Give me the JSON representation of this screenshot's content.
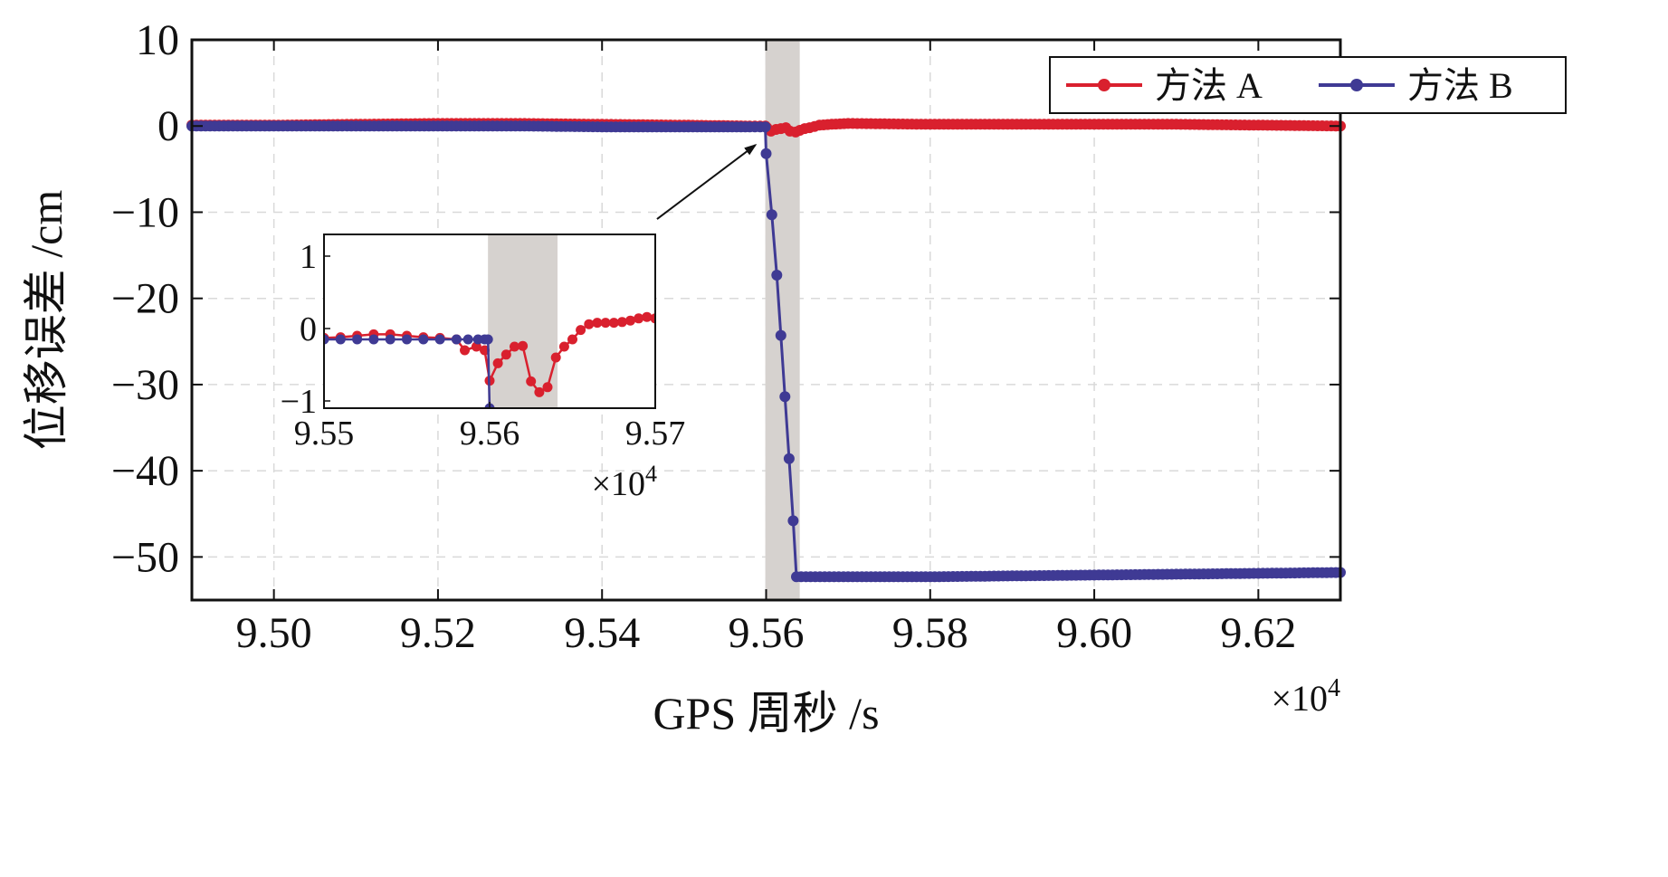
{
  "chart_data": [
    {
      "type": "line",
      "role": "main",
      "title": "",
      "xlabel": "GPS 周秒 /s",
      "ylabel": "位移误差 /cm",
      "x_multiplier_label": "×10",
      "x_multiplier_exp": "4",
      "xlim": [
        9.49,
        9.63
      ],
      "ylim": [
        -55,
        10
      ],
      "x_ticks": [
        9.5,
        9.52,
        9.54,
        9.56,
        9.58,
        9.6,
        9.62
      ],
      "x_tick_labels": [
        "9.50",
        "9.52",
        "9.54",
        "9.56",
        "9.58",
        "9.60",
        "9.62"
      ],
      "y_ticks": [
        10,
        0,
        -10,
        -20,
        -30,
        -40,
        -50
      ],
      "y_tick_labels": [
        "10",
        "0",
        "−10",
        "−20",
        "−30",
        "−40",
        "−50"
      ],
      "grid": true,
      "legend_position": "top-right",
      "shaded_region": [
        9.5599,
        9.5641
      ],
      "annotation_arrow": {
        "from": [
          9.5467,
          -10.8
        ],
        "to": [
          9.5587,
          -2.2
        ]
      },
      "series": [
        {
          "name": "方法 A",
          "color": "#d9202e",
          "x": [
            9.49,
            9.5,
            9.51,
            9.52,
            9.53,
            9.54,
            9.55,
            9.558,
            9.5599,
            9.5601,
            9.5606,
            9.5612,
            9.5618,
            9.5624,
            9.5629,
            9.5636,
            9.5641,
            9.5647,
            9.5653,
            9.5665,
            9.568,
            9.57,
            9.58,
            9.59,
            9.6,
            9.61,
            9.62,
            9.63
          ],
          "y": [
            0.1,
            0.1,
            0.2,
            0.3,
            0.3,
            0.2,
            0.1,
            0.0,
            0.0,
            -0.2,
            -0.6,
            -0.4,
            -0.3,
            -0.2,
            -0.6,
            -0.7,
            -0.5,
            -0.3,
            -0.2,
            0.1,
            0.2,
            0.3,
            0.2,
            0.2,
            0.2,
            0.2,
            0.1,
            0.0
          ]
        },
        {
          "name": "方法 B",
          "color": "#3f3a94",
          "x": [
            9.49,
            9.5,
            9.51,
            9.52,
            9.53,
            9.54,
            9.55,
            9.558,
            9.5599,
            9.56,
            9.5607,
            9.5613,
            9.5618,
            9.5623,
            9.5628,
            9.5633,
            9.5637,
            9.57,
            9.58,
            9.59,
            9.6,
            9.61,
            9.62,
            9.63
          ],
          "y": [
            0.0,
            0.0,
            0.0,
            0.0,
            0.0,
            -0.1,
            -0.1,
            -0.1,
            -0.1,
            -3.2,
            -10.3,
            -17.3,
            -24.3,
            -31.4,
            -38.6,
            -45.8,
            -52.3,
            -52.3,
            -52.3,
            -52.2,
            -52.1,
            -52.0,
            -51.9,
            -51.8
          ]
        }
      ]
    },
    {
      "type": "line",
      "role": "inset",
      "x_multiplier_label": "×10",
      "x_multiplier_exp": "4",
      "xlim": [
        9.55,
        9.57
      ],
      "ylim": [
        -1.1,
        1.3
      ],
      "x_ticks": [
        9.55,
        9.56,
        9.57
      ],
      "x_tick_labels": [
        "9.55",
        "9.56",
        "9.57"
      ],
      "y_ticks": [
        1,
        0,
        -1
      ],
      "y_tick_labels": [
        "1",
        "0",
        "−1"
      ],
      "grid": false,
      "shaded_region": [
        9.5599,
        9.5641
      ],
      "series": [
        {
          "name": "方法 A",
          "color": "#d9202e",
          "x": [
            9.55,
            9.551,
            9.552,
            9.553,
            9.554,
            9.555,
            9.556,
            9.557,
            9.558,
            9.5585,
            9.5592,
            9.5597,
            9.56,
            9.5605,
            9.561,
            9.5615,
            9.562,
            9.5625,
            9.563,
            9.5635,
            9.564,
            9.5645,
            9.565,
            9.5655,
            9.566,
            9.5665,
            9.567,
            9.5675,
            9.568,
            9.5685,
            9.569,
            9.5695,
            9.57
          ],
          "y": [
            -0.13,
            -0.12,
            -0.1,
            -0.08,
            -0.08,
            -0.1,
            -0.12,
            -0.13,
            -0.15,
            -0.3,
            -0.25,
            -0.3,
            -0.72,
            -0.48,
            -0.36,
            -0.25,
            -0.24,
            -0.73,
            -0.88,
            -0.81,
            -0.4,
            -0.25,
            -0.15,
            -0.02,
            0.06,
            0.08,
            0.08,
            0.08,
            0.09,
            0.11,
            0.14,
            0.16,
            0.14
          ]
        },
        {
          "name": "方法 B",
          "color": "#3f3a94",
          "x": [
            9.55,
            9.551,
            9.552,
            9.553,
            9.554,
            9.555,
            9.556,
            9.557,
            9.558,
            9.5587,
            9.5593,
            9.5597,
            9.5599,
            9.56
          ],
          "y": [
            -0.15,
            -0.15,
            -0.15,
            -0.15,
            -0.15,
            -0.15,
            -0.15,
            -0.15,
            -0.15,
            -0.15,
            -0.15,
            -0.15,
            -0.15,
            -1.1
          ]
        }
      ]
    }
  ]
}
